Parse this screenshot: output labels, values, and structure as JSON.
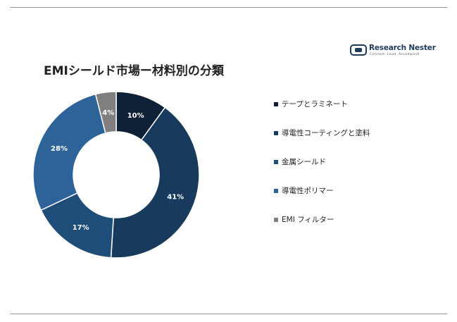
{
  "chart_data": {
    "type": "pie",
    "title": "EMIシールド市場ー材料別の分類",
    "donut": true,
    "categories": [
      "テープとラミネート",
      "導電性コーティングと塗料",
      "金属シールド",
      "導電性ポリマー",
      "EMI フィルター"
    ],
    "values": [
      10,
      41,
      17,
      28,
      4
    ],
    "data_labels": [
      "10%",
      "41%",
      "17%",
      "28%",
      "4%"
    ],
    "colors": [
      "#0f2137",
      "#183a5c",
      "#1f4d79",
      "#2d6399",
      "#7f7f7f"
    ],
    "label_colors": [
      "#ffffff",
      "#ffffff",
      "#ffffff",
      "#ffffff",
      "#ffffff"
    ],
    "legend_position": "right"
  },
  "logo": {
    "name_part1": "Research ",
    "name_part2": "Nester",
    "tagline": "Connect. Lead. Accomplish",
    "icon": "research-nester-logo-icon"
  }
}
